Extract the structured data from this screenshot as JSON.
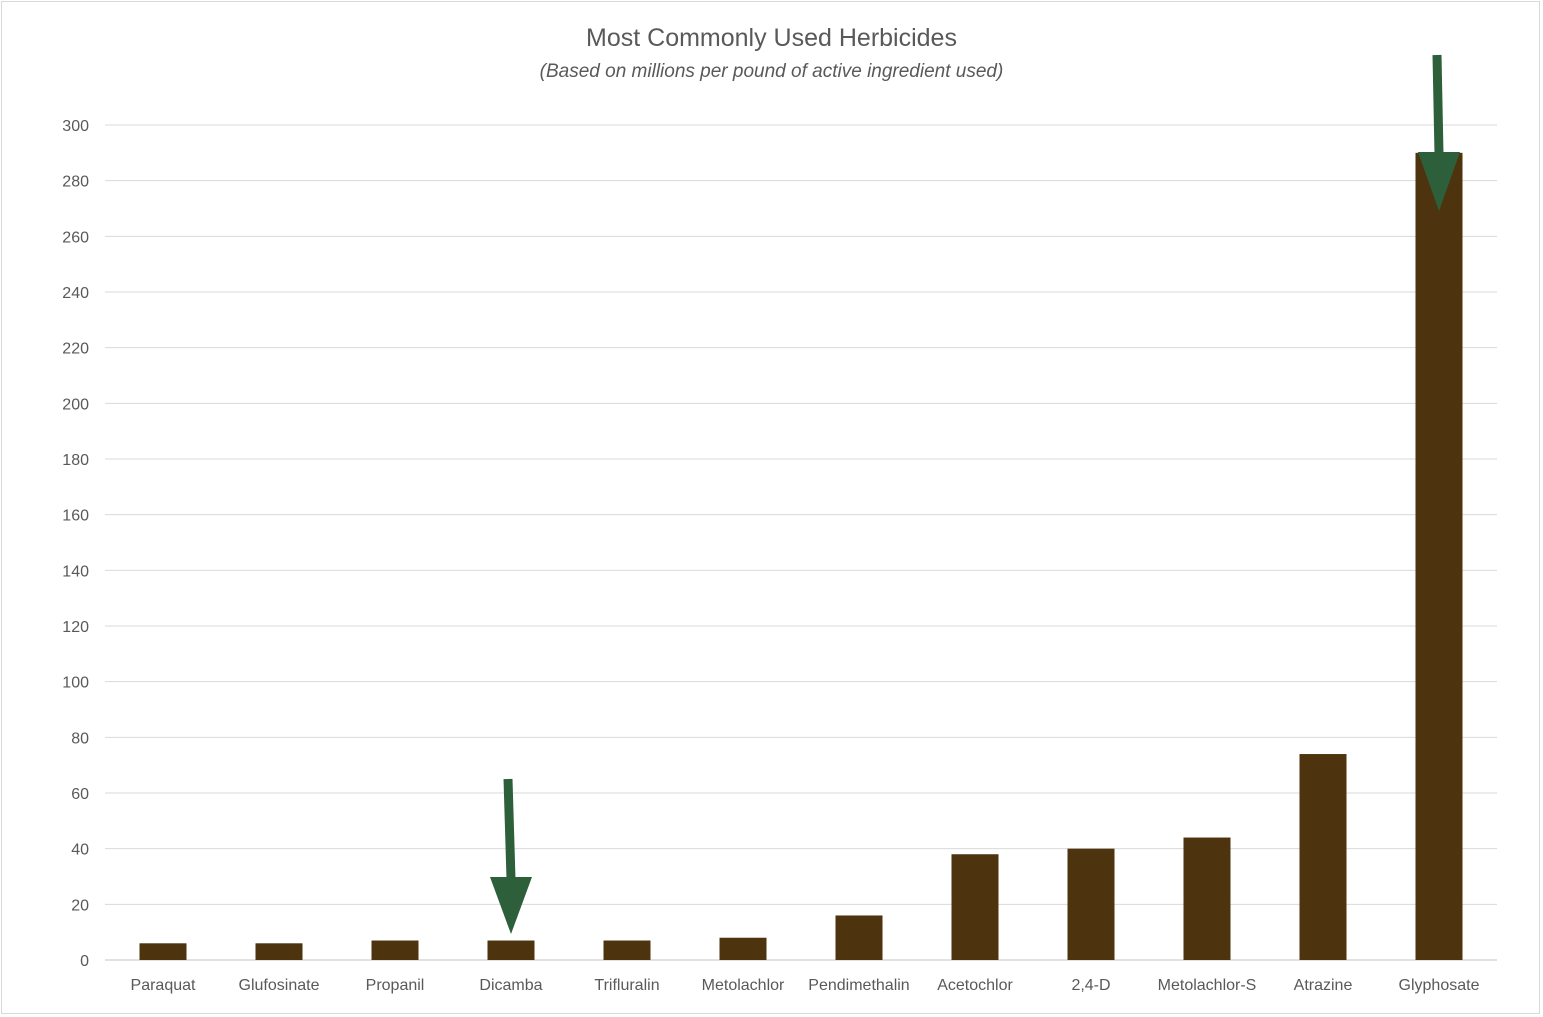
{
  "colors": {
    "bar": "#4e340e",
    "arrow": "#2d5f3a",
    "grid": "#d9d9d9",
    "text": "#595959"
  },
  "chart_data": {
    "type": "bar",
    "title": "Most Commonly Used Herbicides",
    "subtitle": "(Based on millions per pound of active ingredient used)",
    "xlabel": "",
    "ylabel": "",
    "ylim": [
      0,
      300
    ],
    "ytick_step": 20,
    "yticks": [
      "0",
      "20",
      "40",
      "60",
      "80",
      "100",
      "120",
      "140",
      "160",
      "180",
      "200",
      "220",
      "240",
      "260",
      "280",
      "300"
    ],
    "grid": true,
    "legend": "none",
    "categories": [
      "Paraquat",
      "Glufosinate",
      "Propanil",
      "Dicamba",
      "Trifluralin",
      "Metolachlor",
      "Pendimethalin",
      "Acetochlor",
      "2,4-D",
      "Metolachlor-S",
      "Atrazine",
      "Glyphosate"
    ],
    "values": [
      6,
      6,
      7,
      7,
      7,
      8,
      16,
      38,
      40,
      44,
      74,
      290
    ],
    "annotations": [
      {
        "type": "arrow",
        "category": "Dicamba"
      },
      {
        "type": "arrow",
        "category": "Glyphosate"
      }
    ]
  }
}
